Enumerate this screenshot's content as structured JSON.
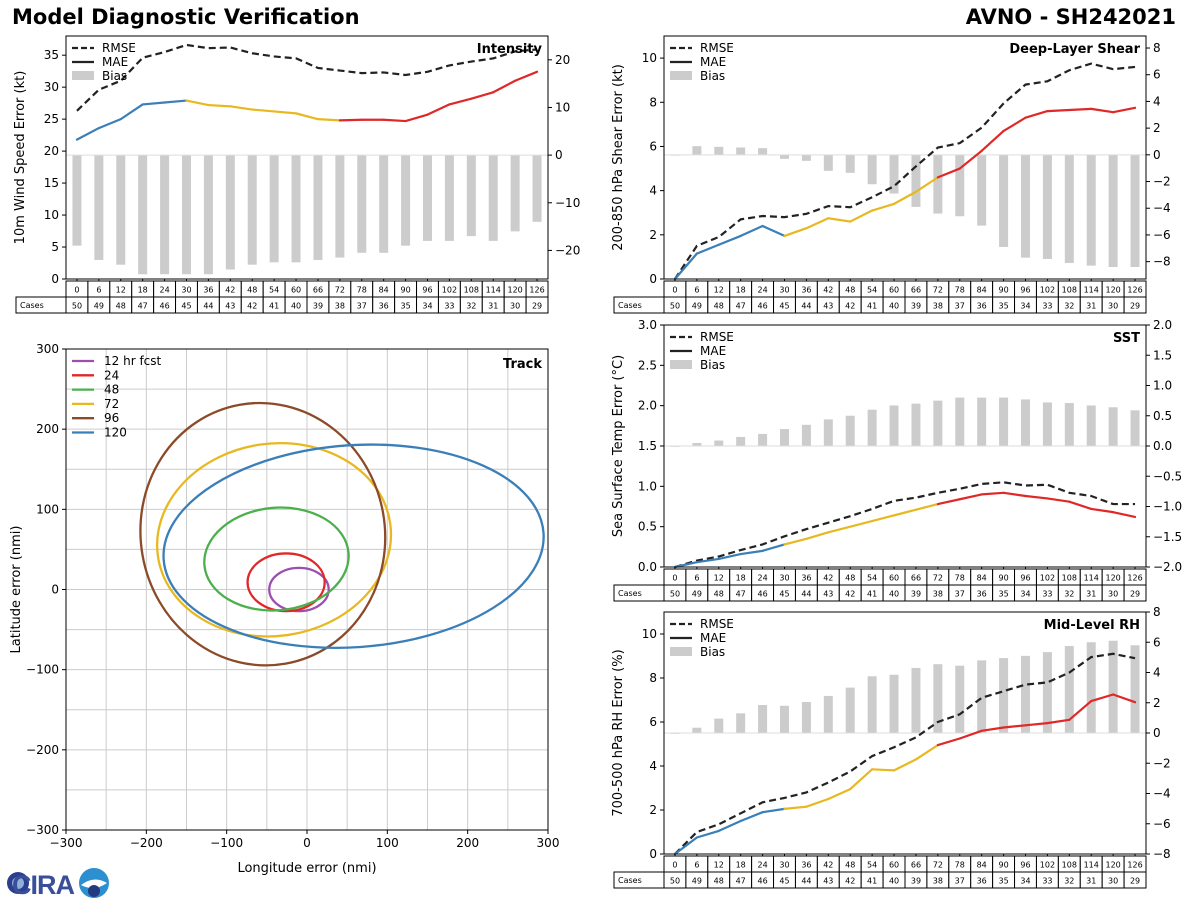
{
  "header": {
    "title": "Model Diagnostic Verification",
    "model_storm": "AVNO - SH242021"
  },
  "logo": {
    "text": "CIRA"
  },
  "colors": {
    "rmse": "#222222",
    "mae_0_30": "#3a7fb8",
    "mae_36_72": "#e8b820",
    "mae_78_126": "#e02828",
    "bias": "#cccccc",
    "grid": "#cccccc"
  },
  "legend": {
    "rmse": "RMSE",
    "mae": "MAE",
    "bias": "Bias"
  },
  "cases_label": "Cases",
  "chart_data": [
    {
      "id": "intensity",
      "type": "line",
      "title": "Intensity",
      "ylabel": "10m Wind Speed Error (kt)",
      "ylim": [
        0,
        38
      ],
      "yticks": [
        0,
        5,
        10,
        15,
        20,
        25,
        30,
        35
      ],
      "y2lim": [
        -26,
        25
      ],
      "y2ticks": [
        -20,
        -10,
        0,
        10,
        20
      ],
      "x": [
        0,
        6,
        12,
        18,
        24,
        30,
        36,
        42,
        48,
        54,
        60,
        66,
        72,
        78,
        84,
        90,
        96,
        102,
        108,
        114,
        120,
        126
      ],
      "rmse": [
        26.3,
        29.6,
        31.0,
        34.6,
        35.5,
        36.6,
        36.1,
        36.2,
        35.3,
        34.8,
        34.5,
        33.0,
        32.6,
        32.2,
        32.3,
        31.9,
        32.4,
        33.4,
        34.0,
        34.5,
        35.6,
        35.9
      ],
      "mae": [
        21.8,
        23.6,
        25.0,
        27.3,
        27.6,
        27.9,
        27.2,
        27.0,
        26.5,
        26.2,
        25.9,
        25.0,
        24.8,
        24.9,
        24.9,
        24.7,
        25.7,
        27.3,
        28.2,
        29.2,
        31.0,
        32.4
      ],
      "bias": [
        -19,
        -22,
        -23,
        -25,
        -25,
        -25,
        -25,
        -24,
        -23,
        -22.5,
        -22.5,
        -22,
        -21.5,
        -20.5,
        -20.5,
        -19,
        -18,
        -18,
        -17,
        -18,
        -16,
        -14
      ],
      "cases": [
        50,
        49,
        48,
        47,
        46,
        45,
        44,
        43,
        42,
        41,
        40,
        39,
        38,
        37,
        36,
        35,
        34,
        33,
        32,
        31,
        30,
        29
      ]
    },
    {
      "id": "shear",
      "type": "line",
      "title": "Deep-Layer Shear",
      "ylabel": "200-850 hPa Shear Error (kt)",
      "ylim": [
        0,
        11
      ],
      "yticks": [
        0,
        2,
        4,
        6,
        8,
        10
      ],
      "y2lim": [
        -9.3,
        8.9
      ],
      "y2ticks": [
        -8,
        -6,
        -4,
        -2,
        0,
        2,
        4,
        6,
        8
      ],
      "x": [
        0,
        6,
        12,
        18,
        24,
        30,
        36,
        42,
        48,
        54,
        60,
        66,
        72,
        78,
        84,
        90,
        96,
        102,
        108,
        114,
        120,
        126
      ],
      "rmse": [
        0.0,
        1.5,
        1.9,
        2.7,
        2.85,
        2.8,
        2.95,
        3.3,
        3.25,
        3.7,
        4.2,
        5.1,
        5.95,
        6.15,
        6.85,
        7.95,
        8.8,
        8.95,
        9.45,
        9.75,
        9.5,
        9.6
      ],
      "mae": [
        0.0,
        1.15,
        1.55,
        1.95,
        2.4,
        1.95,
        2.3,
        2.75,
        2.6,
        3.1,
        3.4,
        3.95,
        4.6,
        5.0,
        5.8,
        6.7,
        7.3,
        7.6,
        7.65,
        7.7,
        7.55,
        7.75
      ],
      "bias": [
        0.0,
        0.65,
        0.6,
        0.55,
        0.5,
        -0.3,
        -0.45,
        -1.2,
        -1.35,
        -2.2,
        -2.9,
        -3.9,
        -4.4,
        -4.6,
        -5.3,
        -6.9,
        -7.7,
        -7.8,
        -8.1,
        -8.3,
        -8.4,
        -8.4
      ],
      "cases": [
        50,
        49,
        48,
        47,
        46,
        45,
        44,
        43,
        42,
        41,
        40,
        39,
        38,
        37,
        36,
        35,
        34,
        33,
        32,
        31,
        30,
        29
      ]
    },
    {
      "id": "track",
      "type": "ellipse",
      "title": "Track",
      "xlabel": "Longitude error (nmi)",
      "ylabel": "Latitude error (nmi)",
      "xlim": [
        -300,
        300
      ],
      "ylim": [
        -300,
        300
      ],
      "xticks": [
        -300,
        -200,
        -100,
        0,
        100,
        200,
        300
      ],
      "yticks": [
        -300,
        -200,
        -100,
        0,
        100,
        200,
        300
      ],
      "ellipses": [
        {
          "label": "12 hr fcst",
          "color": "#9b4fb0",
          "cx": -10,
          "cy": 0,
          "rx": 37,
          "ry": 27,
          "rot": 0
        },
        {
          "label": "24",
          "color": "#e02828",
          "cx": -26,
          "cy": 9,
          "rx": 48,
          "ry": 36,
          "rot": 0
        },
        {
          "label": "48",
          "color": "#4caf4c",
          "cx": -38,
          "cy": 38,
          "rx": 90,
          "ry": 64,
          "rot": -5
        },
        {
          "label": "72",
          "color": "#e8b820",
          "cx": -41,
          "cy": 62,
          "rx": 146,
          "ry": 120,
          "rot": -8
        },
        {
          "label": "96",
          "color": "#8b4a28",
          "cx": -55,
          "cy": 69,
          "rx": 152,
          "ry": 164,
          "rot": -10
        },
        {
          "label": "120",
          "color": "#3a7fb8",
          "cx": 58,
          "cy": 54,
          "rx": 237,
          "ry": 126,
          "rot": -4
        }
      ]
    },
    {
      "id": "sst",
      "type": "line",
      "title": "SST",
      "ylabel": "Sea Surface Temp Error (°C)",
      "ylim": [
        0,
        3.0
      ],
      "yticks": [
        0.0,
        0.5,
        1.0,
        1.5,
        2.0,
        2.5,
        3.0
      ],
      "y2lim": [
        -2.0,
        2.0
      ],
      "y2ticks": [
        -2.0,
        -1.5,
        -1.0,
        -0.5,
        0.0,
        0.5,
        1.0,
        1.5,
        2.0
      ],
      "x": [
        0,
        6,
        12,
        18,
        24,
        30,
        36,
        42,
        48,
        54,
        60,
        66,
        72,
        78,
        84,
        90,
        96,
        102,
        108,
        114,
        120,
        126
      ],
      "rmse": [
        0.0,
        0.08,
        0.13,
        0.21,
        0.28,
        0.38,
        0.47,
        0.55,
        0.63,
        0.72,
        0.82,
        0.86,
        0.92,
        0.97,
        1.03,
        1.05,
        1.01,
        1.02,
        0.92,
        0.88,
        0.78,
        0.78
      ],
      "mae": [
        0.0,
        0.06,
        0.1,
        0.16,
        0.2,
        0.28,
        0.35,
        0.43,
        0.5,
        0.57,
        0.64,
        0.71,
        0.78,
        0.84,
        0.9,
        0.92,
        0.88,
        0.85,
        0.81,
        0.72,
        0.68,
        0.62
      ],
      "bias": [
        0.0,
        0.05,
        0.09,
        0.15,
        0.2,
        0.28,
        0.35,
        0.44,
        0.5,
        0.6,
        0.67,
        0.7,
        0.75,
        0.8,
        0.8,
        0.8,
        0.77,
        0.72,
        0.71,
        0.67,
        0.64,
        0.59
      ],
      "cases": [
        50,
        49,
        48,
        47,
        46,
        45,
        44,
        43,
        42,
        41,
        40,
        39,
        38,
        37,
        36,
        35,
        34,
        33,
        32,
        31,
        30,
        29
      ]
    },
    {
      "id": "rh",
      "type": "line",
      "title": "Mid-Level RH",
      "ylabel": "700-500 hPa RH Error (%)",
      "ylim": [
        0,
        11
      ],
      "yticks": [
        0,
        2,
        4,
        6,
        8,
        10
      ],
      "y2lim": [
        -8,
        8
      ],
      "y2ticks": [
        -8,
        -6,
        -4,
        -2,
        0,
        2,
        4,
        6,
        8
      ],
      "x": [
        0,
        6,
        12,
        18,
        24,
        30,
        36,
        42,
        48,
        54,
        60,
        66,
        72,
        78,
        84,
        90,
        96,
        102,
        108,
        114,
        120,
        126
      ],
      "rmse": [
        0.0,
        1.0,
        1.35,
        1.85,
        2.35,
        2.55,
        2.8,
        3.25,
        3.75,
        4.45,
        4.85,
        5.3,
        6.0,
        6.35,
        7.1,
        7.4,
        7.7,
        7.8,
        8.25,
        8.95,
        9.1,
        8.9
      ],
      "mae": [
        0.0,
        0.75,
        1.05,
        1.5,
        1.9,
        2.05,
        2.15,
        2.5,
        2.95,
        3.85,
        3.8,
        4.3,
        4.95,
        5.25,
        5.6,
        5.75,
        5.85,
        5.95,
        6.1,
        6.95,
        7.25,
        6.9
      ],
      "bias": [
        0.0,
        0.35,
        0.95,
        1.3,
        1.85,
        1.8,
        2.05,
        2.45,
        3.0,
        3.75,
        3.85,
        4.3,
        4.55,
        4.45,
        4.8,
        4.95,
        5.1,
        5.35,
        5.75,
        6.0,
        6.1,
        5.8
      ],
      "cases": [
        50,
        49,
        48,
        47,
        46,
        45,
        44,
        43,
        42,
        41,
        40,
        39,
        38,
        37,
        36,
        35,
        34,
        33,
        32,
        31,
        30,
        29
      ]
    }
  ]
}
